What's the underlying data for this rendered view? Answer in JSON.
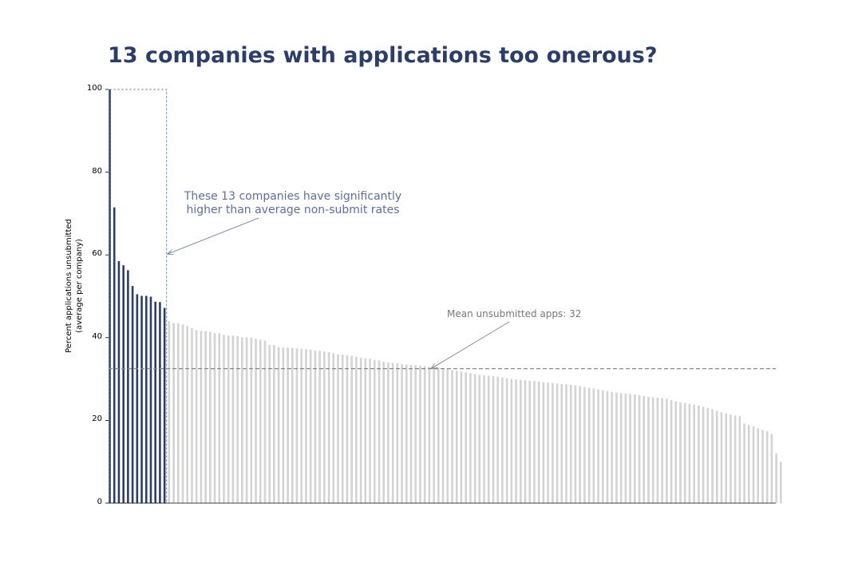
{
  "title": "13 companies with applications too onerous?",
  "chart_data": {
    "type": "bar",
    "ylabel_lines": [
      "Percent applications unsubmitted",
      "(average per company)"
    ],
    "ylim": [
      0,
      100
    ],
    "yticks": [
      "0",
      "20",
      "40",
      "60",
      "80",
      "100"
    ],
    "highlight_count": 13,
    "mean_value": 32.5,
    "mean_label": "Mean unsubmitted apps: 32",
    "highlight_annotation": [
      "These 13 companies have significantly",
      "higher than average non-submit rates"
    ],
    "colors": {
      "highlight": "#2c3e66",
      "other": "#d3d3d3",
      "mean_line": "#888888",
      "annotation": "#5f6f99"
    },
    "values": [
      100,
      71.5,
      58.5,
      57.5,
      56.3,
      52.5,
      50.5,
      50.1,
      50.1,
      49.9,
      48.7,
      48.6,
      47.2,
      44,
      43.5,
      43.5,
      43.2,
      42.8,
      42.3,
      41.8,
      41.6,
      41.6,
      41.3,
      41.1,
      41.1,
      40.7,
      40.5,
      40.5,
      40.4,
      40.1,
      40.1,
      40,
      39.8,
      39.5,
      39.3,
      38.3,
      38.2,
      37.7,
      37.6,
      37.6,
      37.5,
      37.4,
      37.3,
      37.2,
      37.1,
      36.9,
      36.8,
      36.6,
      36.5,
      36.3,
      36,
      35.9,
      35.8,
      35.6,
      35.4,
      35.2,
      35,
      34.9,
      34.6,
      34.5,
      34.2,
      34,
      33.9,
      33.8,
      33.6,
      33.5,
      33.4,
      33.3,
      33.2,
      33.1,
      33,
      32.9,
      32.8,
      32.6,
      32.4,
      32.2,
      32,
      31.8,
      31.6,
      31.4,
      31.2,
      31,
      30.9,
      30.8,
      30.7,
      30.6,
      30.4,
      30.2,
      30,
      29.9,
      29.8,
      29.7,
      29.6,
      29.5,
      29.4,
      29.2,
      29.1,
      29,
      28.9,
      28.8,
      28.7,
      28.6,
      28.5,
      28.3,
      28.1,
      27.9,
      27.7,
      27.5,
      27.3,
      27.1,
      26.9,
      26.7,
      26.6,
      26.5,
      26.4,
      26.3,
      26.1,
      25.9,
      25.7,
      25.6,
      25.5,
      25.4,
      25.2,
      24.9,
      24.6,
      24.4,
      24.2,
      24,
      23.8,
      23.6,
      23.3,
      23,
      22.7,
      22.3,
      22,
      21.7,
      21.4,
      21.2,
      21,
      19.2,
      18.9,
      18.6,
      18.1,
      17.7,
      17.4,
      16.7,
      12,
      10
    ]
  }
}
